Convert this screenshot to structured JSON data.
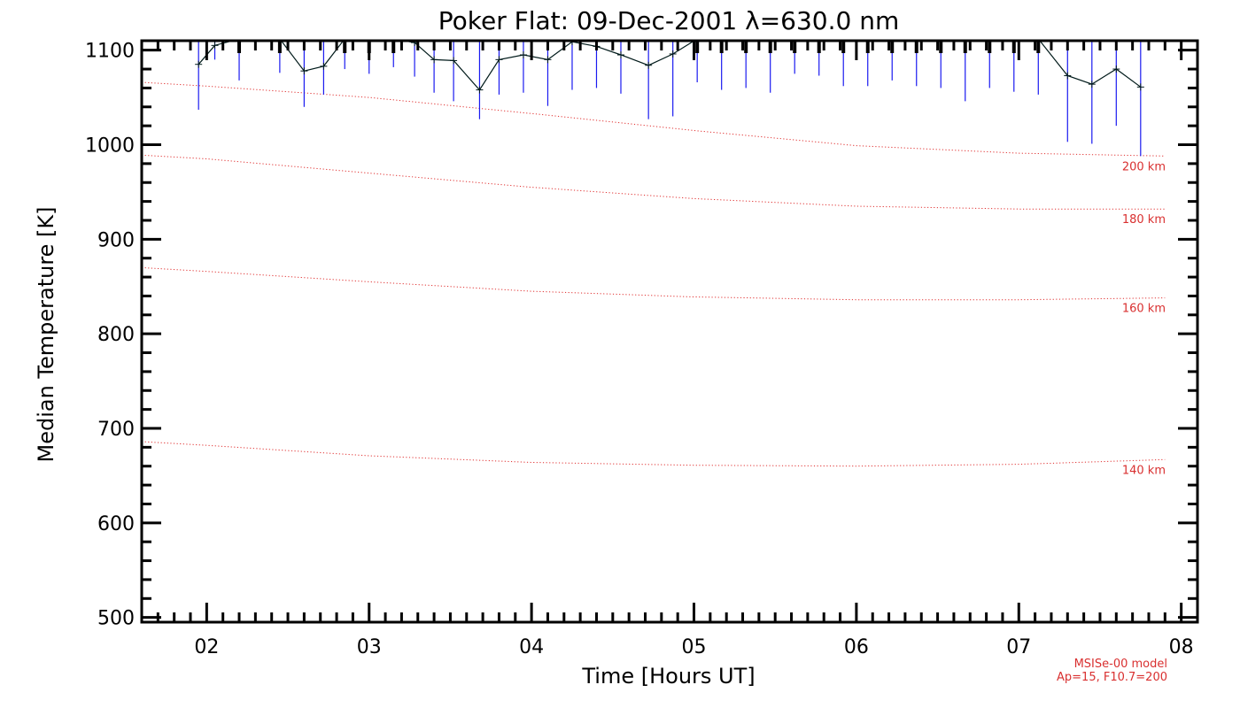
{
  "chart_data": {
    "type": "line",
    "title": "Poker Flat: 09-Dec-2001 λ=630.0 nm",
    "xlabel": "Time [Hours UT]",
    "ylabel": "Median Temperature [K]",
    "xlim": [
      1.6,
      8.1
    ],
    "ylim": [
      495,
      1110
    ],
    "x_ticks": [
      2,
      3,
      4,
      5,
      6,
      7,
      8
    ],
    "x_tick_labels": [
      "02",
      "03",
      "04",
      "05",
      "06",
      "07",
      "08"
    ],
    "y_ticks": [
      500,
      600,
      700,
      800,
      900,
      1000,
      1100
    ],
    "y_tick_labels": [
      "500",
      "600",
      "700",
      "800",
      "900",
      "1000",
      "1100"
    ],
    "series": [
      {
        "name": "Median temperature",
        "color": "#001a1a",
        "x": [
          1.95,
          2.05,
          2.2,
          2.45,
          2.6,
          2.72,
          2.85,
          3.0,
          3.15,
          3.28,
          3.4,
          3.52,
          3.68,
          3.8,
          3.95,
          4.1,
          4.25,
          4.4,
          4.55,
          4.72,
          4.87,
          5.02,
          5.17,
          5.32,
          5.47,
          5.62,
          5.77,
          5.92,
          6.07,
          6.22,
          6.37,
          6.52,
          6.67,
          6.82,
          6.97,
          7.12,
          7.3,
          7.45,
          7.6,
          7.75
        ],
        "y": [
          1085,
          1105,
          1112,
          1112,
          1078,
          1083,
          1112,
          1112,
          1112,
          1108,
          1090,
          1089,
          1058,
          1090,
          1095,
          1090,
          1109,
          1104,
          1095,
          1084,
          1096,
          1112,
          1112,
          1112,
          1112,
          1112,
          1112,
          1112,
          1112,
          1112,
          1112,
          1112,
          1112,
          1112,
          1112,
          1112,
          1073,
          1064,
          1080,
          1061
        ],
        "error_low": [
          1037,
          1090,
          1068,
          1076,
          1040,
          1053,
          1080,
          1075,
          1082,
          1072,
          1055,
          1046,
          1027,
          1053,
          1055,
          1041,
          1058,
          1060,
          1054,
          1027,
          1030,
          1066,
          1058,
          1060,
          1055,
          1075,
          1073,
          1062,
          1062,
          1068,
          1062,
          1060,
          1046,
          1060,
          1056,
          1053,
          1003,
          1001,
          1020,
          988
        ],
        "error_color": "#1a1af0"
      }
    ],
    "model_curves": [
      {
        "label": "200 km",
        "color": "#e03030",
        "x": [
          1.6,
          2.0,
          3.0,
          4.0,
          5.0,
          6.0,
          7.0,
          7.9
        ],
        "y": [
          1066,
          1062,
          1050,
          1033,
          1015,
          999,
          991,
          988
        ]
      },
      {
        "label": "180 km",
        "color": "#e03030",
        "x": [
          1.6,
          2.0,
          3.0,
          4.0,
          5.0,
          6.0,
          7.0,
          7.9
        ],
        "y": [
          989,
          985,
          970,
          955,
          943,
          935,
          932,
          932
        ]
      },
      {
        "label": "160 km",
        "color": "#e03030",
        "x": [
          1.6,
          2.0,
          3.0,
          4.0,
          5.0,
          6.0,
          7.0,
          7.9
        ],
        "y": [
          870,
          866,
          855,
          845,
          839,
          836,
          836,
          838
        ]
      },
      {
        "label": "140 km",
        "color": "#e03030",
        "x": [
          1.6,
          2.0,
          3.0,
          4.0,
          5.0,
          6.0,
          7.0,
          7.9
        ],
        "y": [
          686,
          682,
          671,
          664,
          661,
          660,
          662,
          667
        ]
      }
    ],
    "model_note_line1": "MSISe-00 model",
    "model_note_line2": "Ap=15, F10.7=200",
    "grid": false,
    "colors": {
      "axis": "#000000",
      "model": "#e03030",
      "data_line": "#001a1a",
      "errors": "#1a1af0"
    }
  }
}
